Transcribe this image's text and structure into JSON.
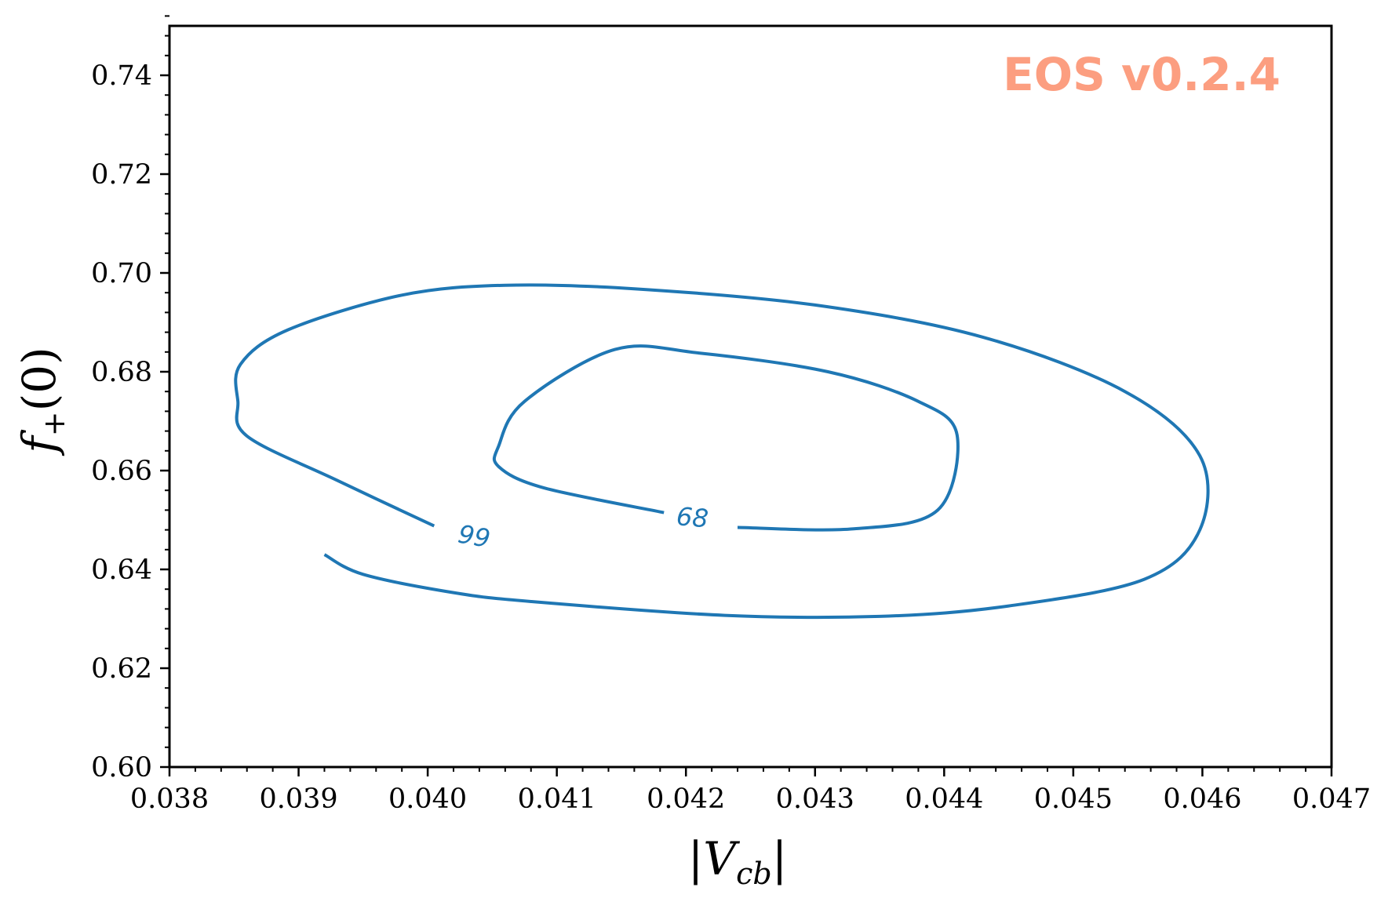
{
  "chart_data": {
    "type": "contour",
    "watermark": "EOS v0.2.4",
    "xlabel": {
      "text": "|V",
      "sub": "cb",
      "close": "|"
    },
    "ylabel": {
      "text": "f",
      "sub": "+",
      "rest": "(0)"
    },
    "xlim": [
      0.038,
      0.047
    ],
    "ylim": [
      0.6,
      0.75
    ],
    "x_ticks": [
      0.038,
      0.039,
      0.04,
      0.041,
      0.042,
      0.043,
      0.044,
      0.045,
      0.046,
      0.047
    ],
    "x_tick_labels": [
      "0.038",
      "0.039",
      "0.040",
      "0.041",
      "0.042",
      "0.043",
      "0.044",
      "0.045",
      "0.046",
      "0.047"
    ],
    "y_ticks": [
      0.6,
      0.62,
      0.64,
      0.66,
      0.68,
      0.7,
      0.72,
      0.74
    ],
    "y_tick_labels": [
      "0.60",
      "0.62",
      "0.64",
      "0.66",
      "0.68",
      "0.70",
      "0.72",
      "0.74"
    ],
    "x_minor_step": 0.0002,
    "y_minor_step": 0.004,
    "grid": false,
    "series": [
      {
        "label": "99",
        "color": "#1f77b4",
        "label_at": {
          "x": 0.04036,
          "y": 0.6467,
          "rotation_deg": 10
        },
        "points": [
          [
            0.04005,
            0.6488
          ],
          [
            0.0393,
            0.658
          ],
          [
            0.0386,
            0.667
          ],
          [
            0.03853,
            0.674
          ],
          [
            0.03855,
            0.6815
          ],
          [
            0.03892,
            0.6885
          ],
          [
            0.0398,
            0.6955
          ],
          [
            0.0406,
            0.6975
          ],
          [
            0.0416,
            0.6968
          ],
          [
            0.043,
            0.6935
          ],
          [
            0.0443,
            0.687
          ],
          [
            0.0454,
            0.676
          ],
          [
            0.04598,
            0.663
          ],
          [
            0.04598,
            0.648
          ],
          [
            0.04555,
            0.638
          ],
          [
            0.0445,
            0.6326
          ],
          [
            0.0435,
            0.6305
          ],
          [
            0.0423,
            0.6307
          ],
          [
            0.0408,
            0.6335
          ],
          [
            0.0402,
            0.6353
          ],
          [
            0.0395,
            0.639
          ],
          [
            0.0392,
            0.643
          ]
        ]
      },
      {
        "label": "68",
        "color": "#1f77b4",
        "label_at": {
          "x": 0.04205,
          "y": 0.6505,
          "rotation_deg": 5
        },
        "points": [
          [
            0.04183,
            0.6515
          ],
          [
            0.0409,
            0.6565
          ],
          [
            0.04055,
            0.6608
          ],
          [
            0.04055,
            0.665
          ],
          [
            0.04075,
            0.674
          ],
          [
            0.04145,
            0.6845
          ],
          [
            0.0421,
            0.6838
          ],
          [
            0.0431,
            0.68
          ],
          [
            0.0438,
            0.674
          ],
          [
            0.0441,
            0.6672
          ],
          [
            0.04395,
            0.652
          ],
          [
            0.0433,
            0.6482
          ],
          [
            0.0424,
            0.6485
          ]
        ]
      }
    ]
  }
}
